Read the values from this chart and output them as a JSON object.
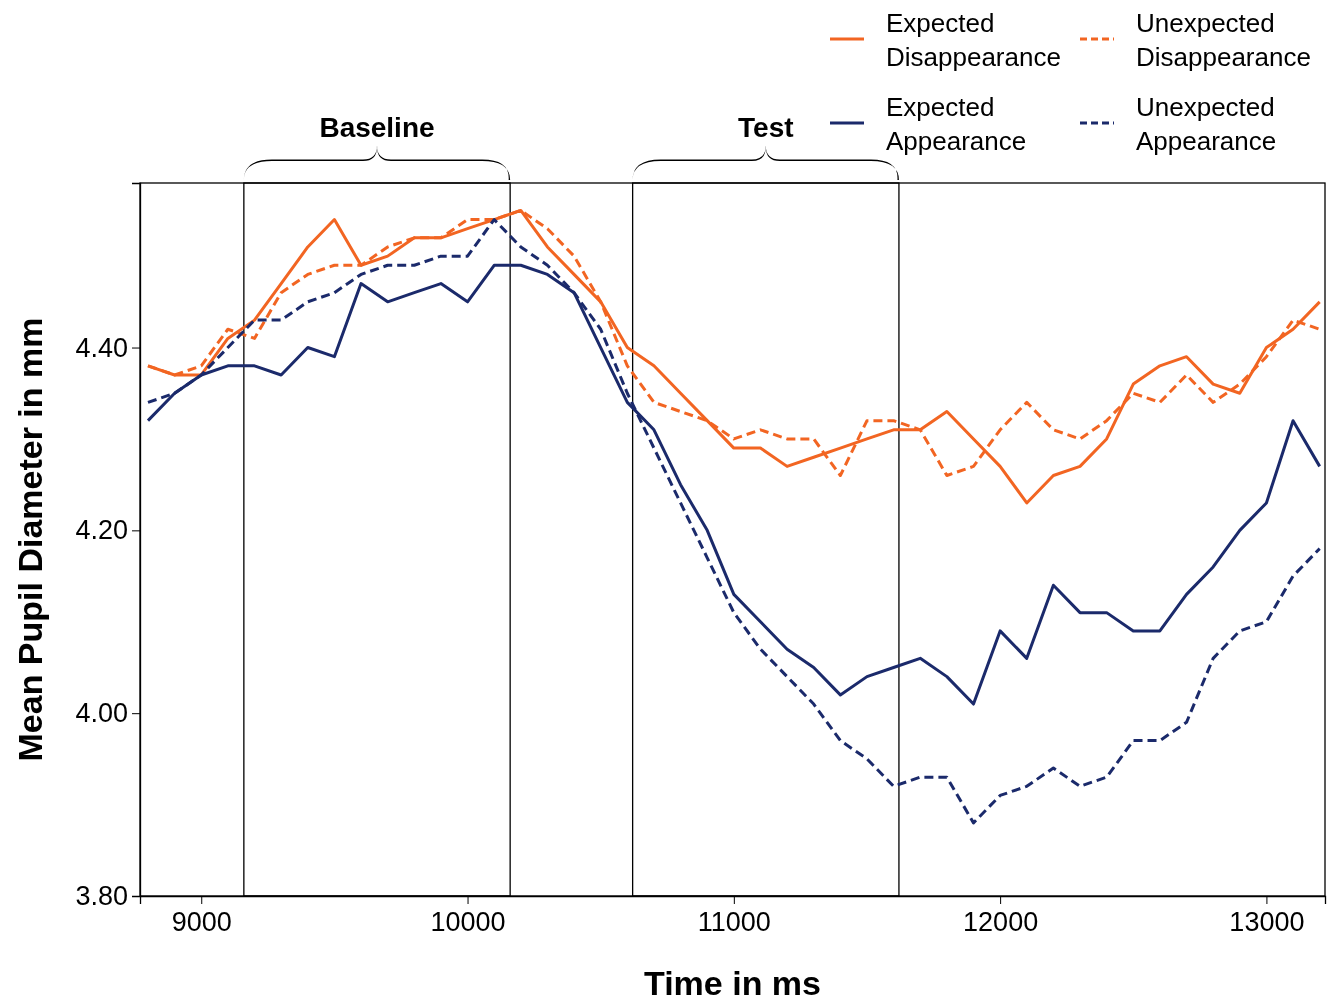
{
  "chart_data": {
    "type": "line",
    "xlabel": "Time in ms",
    "ylabel": "Mean Pupil Diameter in mm",
    "x": [
      8800,
      8900,
      9000,
      9100,
      9200,
      9300,
      9400,
      9500,
      9600,
      9700,
      9800,
      9900,
      10000,
      10100,
      10200,
      10300,
      10400,
      10500,
      10600,
      10700,
      10800,
      10900,
      11000,
      11100,
      11200,
      11300,
      11400,
      11500,
      11600,
      11700,
      11800,
      11900,
      12000,
      12100,
      12200,
      12300,
      12400,
      12500,
      12600,
      12700,
      12800,
      12900,
      13000,
      13100,
      13200
    ],
    "series": [
      {
        "name": "Expected Disappearance",
        "color": "#f26522",
        "line_style": "solid",
        "values": [
          4.38,
          4.37,
          4.37,
          4.41,
          4.43,
          4.47,
          4.51,
          4.54,
          4.49,
          4.5,
          4.52,
          4.52,
          4.53,
          4.54,
          4.55,
          4.51,
          4.48,
          4.45,
          4.4,
          4.38,
          4.35,
          4.32,
          4.29,
          4.29,
          4.27,
          4.28,
          4.29,
          4.3,
          4.31,
          4.31,
          4.33,
          4.3,
          4.27,
          4.23,
          4.26,
          4.27,
          4.3,
          4.36,
          4.38,
          4.39,
          4.36,
          4.35,
          4.4,
          4.42,
          4.45
        ]
      },
      {
        "name": "Unexpected Disappearance",
        "color": "#f26522",
        "line_style": "dashed",
        "values": [
          4.38,
          4.37,
          4.38,
          4.42,
          4.41,
          4.46,
          4.48,
          4.49,
          4.49,
          4.51,
          4.52,
          4.52,
          4.54,
          4.54,
          4.55,
          4.53,
          4.5,
          4.45,
          4.38,
          4.34,
          4.33,
          4.32,
          4.3,
          4.31,
          4.3,
          4.3,
          4.26,
          4.32,
          4.32,
          4.31,
          4.26,
          4.27,
          4.31,
          4.34,
          4.31,
          4.3,
          4.32,
          4.35,
          4.34,
          4.37,
          4.34,
          4.36,
          4.39,
          4.43,
          4.42
        ]
      },
      {
        "name": "Expected Appearance",
        "color": "#1b2a6b",
        "line_style": "solid",
        "values": [
          4.32,
          4.35,
          4.37,
          4.38,
          4.38,
          4.37,
          4.4,
          4.39,
          4.47,
          4.45,
          4.46,
          4.47,
          4.45,
          4.49,
          4.49,
          4.48,
          4.46,
          4.4,
          4.34,
          4.31,
          4.25,
          4.2,
          4.13,
          4.1,
          4.07,
          4.05,
          4.02,
          4.04,
          4.05,
          4.06,
          4.04,
          4.01,
          4.09,
          4.06,
          4.14,
          4.11,
          4.11,
          4.09,
          4.09,
          4.13,
          4.16,
          4.2,
          4.23,
          4.32,
          4.27
        ]
      },
      {
        "name": "Unexpected Appearance",
        "color": "#1b2a6b",
        "line_style": "dashed",
        "values": [
          4.34,
          4.35,
          4.37,
          4.4,
          4.43,
          4.43,
          4.45,
          4.46,
          4.48,
          4.49,
          4.49,
          4.5,
          4.5,
          4.54,
          4.51,
          4.49,
          4.46,
          4.42,
          4.35,
          4.29,
          4.23,
          4.17,
          4.11,
          4.07,
          4.04,
          4.01,
          3.97,
          3.95,
          3.92,
          3.93,
          3.93,
          3.88,
          3.91,
          3.92,
          3.94,
          3.92,
          3.93,
          3.97,
          3.97,
          3.99,
          4.06,
          4.09,
          4.1,
          4.15,
          4.18
        ]
      }
    ],
    "xlim": [
      8770,
      13220
    ],
    "xticks": [
      9000,
      10000,
      11000,
      12000,
      13000
    ],
    "ylim": [
      3.8,
      4.58
    ],
    "yticks": [
      {
        "value": 3.8,
        "label": "3.80"
      },
      {
        "value": 4.0,
        "label": "4.00"
      },
      {
        "value": 4.2,
        "label": "4.20"
      },
      {
        "value": 4.4,
        "label": "4.40"
      }
    ],
    "bands": [
      {
        "axis": "x",
        "from": 9160,
        "to": 10160,
        "label": "Baseline",
        "color": "#ffffff"
      },
      {
        "axis": "x",
        "from": 10620,
        "to": 11620,
        "label": "Test",
        "color": "#ffffff"
      }
    ],
    "grid": false,
    "legend": "top right"
  }
}
